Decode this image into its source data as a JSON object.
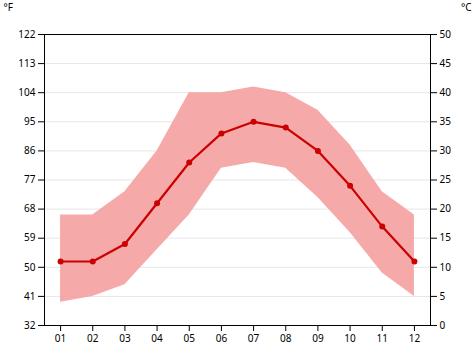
{
  "chart_data": {
    "type": "line",
    "ylabel": "°F",
    "y2label": "°C",
    "x": [
      1,
      2,
      3,
      4,
      5,
      6,
      7,
      8,
      9,
      10,
      11,
      12
    ],
    "xlim": [
      0.5,
      12.5
    ],
    "xticks": [
      {
        "value": 1,
        "label": "01"
      },
      {
        "value": 2,
        "label": "02"
      },
      {
        "value": 3,
        "label": "03"
      },
      {
        "value": 4,
        "label": "04"
      },
      {
        "value": 5,
        "label": "05"
      },
      {
        "value": 6,
        "label": "06"
      },
      {
        "value": 7,
        "label": "07"
      },
      {
        "value": 8,
        "label": "08"
      },
      {
        "value": 9,
        "label": "09"
      },
      {
        "value": 10,
        "label": "10"
      },
      {
        "value": 11,
        "label": "11"
      },
      {
        "value": 12,
        "label": "12"
      }
    ],
    "ylim": [
      32,
      122
    ],
    "yticks": [
      32,
      41,
      50,
      59,
      68,
      77,
      86,
      95,
      104,
      113,
      122
    ],
    "y2lim": [
      0,
      50
    ],
    "y2ticks": [
      0,
      5,
      10,
      15,
      20,
      25,
      30,
      35,
      40,
      45,
      50
    ],
    "grid": true,
    "series": [
      {
        "type": "area",
        "color": "#f5a0a0",
        "axis": "y2",
        "low": [
          4,
          5,
          7,
          13,
          19,
          27,
          28,
          27,
          22,
          16,
          9,
          5
        ],
        "high": [
          19,
          19,
          23,
          30,
          40,
          40,
          41,
          40,
          37,
          31,
          23,
          19
        ]
      },
      {
        "type": "line",
        "color": "#cc0000",
        "marker": "circle",
        "axis": "y2",
        "values": [
          11,
          11,
          14,
          21,
          28,
          33,
          35,
          34,
          30,
          24,
          17,
          11
        ]
      }
    ]
  }
}
